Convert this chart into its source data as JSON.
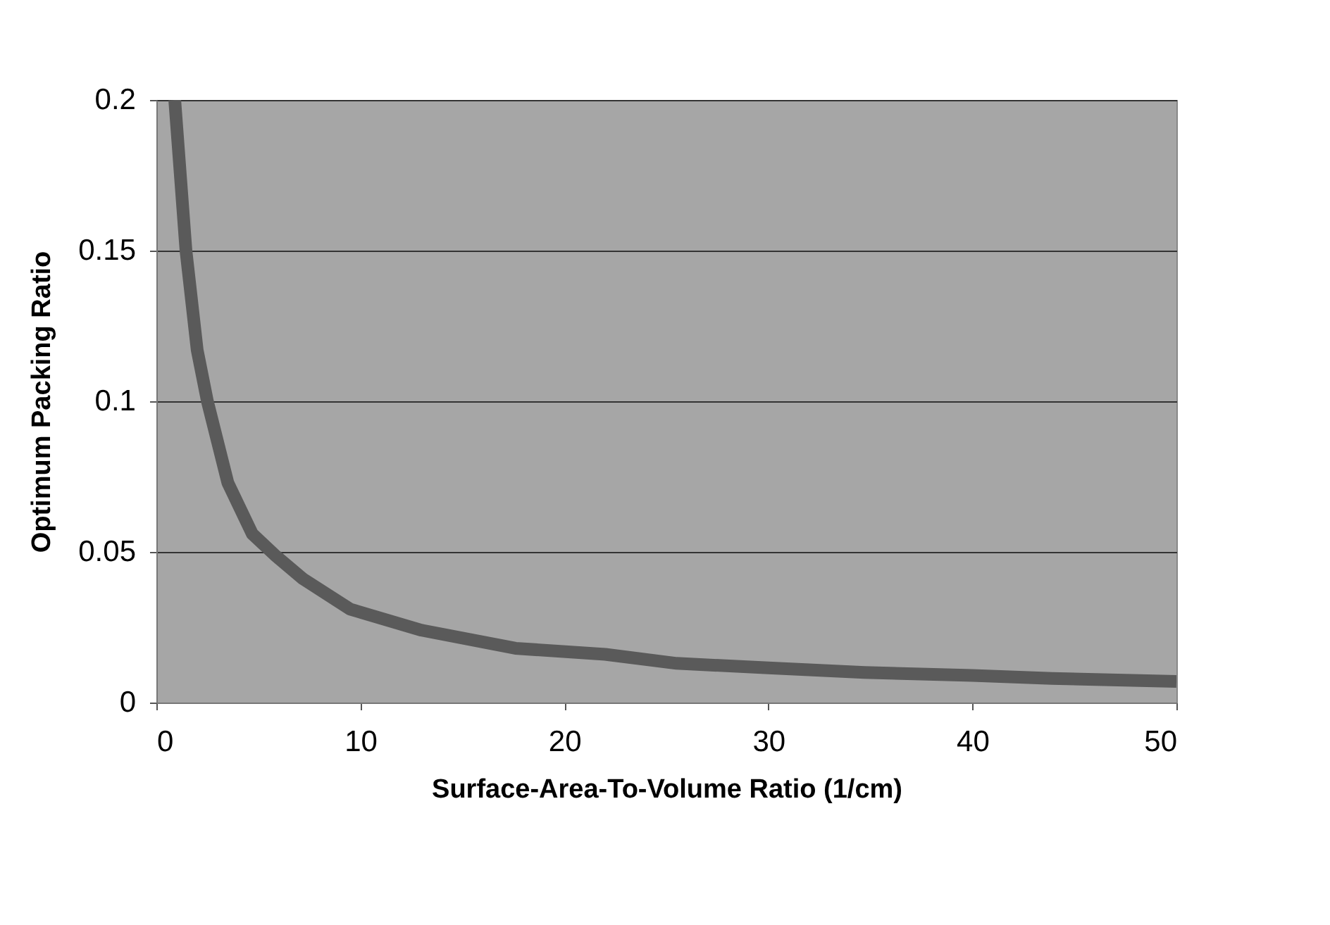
{
  "chart_data": {
    "type": "line",
    "xlabel": "Surface-Area-To-Volume Ratio (1/cm)",
    "ylabel": "Optimum Packing Ratio",
    "x": [
      0.9,
      1.45,
      2.0,
      2.5,
      3.5,
      4.7,
      5.8,
      7.2,
      9.5,
      13,
      17.6,
      22,
      25.5,
      30,
      34.7,
      40,
      43.9,
      50
    ],
    "series": [
      {
        "color": "#5a5a5a",
        "values": [
          0.2,
          0.15,
          0.117,
          0.1,
          0.073,
          0.056,
          0.049,
          0.041,
          0.031,
          0.024,
          0.018,
          0.016,
          0.013,
          0.0115,
          0.01,
          0.009,
          0.008,
          0.007
        ]
      }
    ],
    "xlim": [
      0,
      50
    ],
    "xticks": [
      0,
      10,
      20,
      30,
      40,
      50
    ],
    "ylim": [
      0,
      0.2
    ],
    "yticks": [
      0,
      0.05,
      0.1,
      0.15,
      0.2
    ],
    "grid": "y",
    "legend": false,
    "marker": "none",
    "line_style": "solid"
  }
}
